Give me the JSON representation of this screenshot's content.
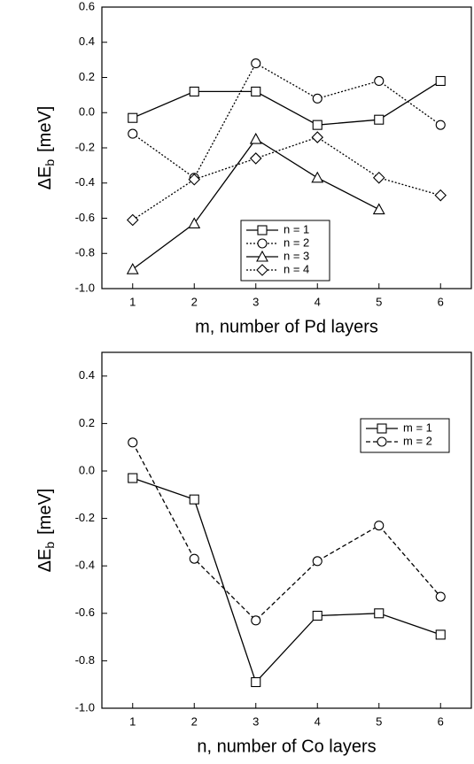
{
  "chart_data": [
    {
      "type": "line",
      "ylabel": {
        "main": "ΔE",
        "sub": "b",
        "unit": "[meV]"
      },
      "xlabel": "m, number of Pd layers",
      "x": [
        1,
        2,
        3,
        4,
        5,
        6
      ],
      "xlim": [
        0.5,
        6.5
      ],
      "xticks": [
        1,
        2,
        3,
        4,
        5,
        6
      ],
      "ylim": [
        -1.0,
        0.6
      ],
      "yticks": [
        {
          "value": -1.0,
          "label": "-1.0"
        },
        -0.8,
        -0.6,
        -0.4,
        -0.2,
        {
          "value": 0,
          "label": "0.0"
        },
        0.2,
        0.4,
        0.6
      ],
      "legend": "center",
      "series": [
        {
          "name": "n = 1",
          "color": "#000000",
          "marker": "square",
          "line_style": "solid",
          "values": [
            -0.03,
            0.12,
            0.12,
            -0.07,
            -0.04,
            0.18
          ]
        },
        {
          "name": "n = 2",
          "color": "#000000",
          "marker": "circle",
          "line_style": "dotted",
          "values": [
            -0.12,
            -0.37,
            0.28,
            0.08,
            0.18,
            -0.07
          ]
        },
        {
          "name": "n = 3",
          "color": "#000000",
          "marker": "triangle",
          "line_style": "solid",
          "values": [
            -0.89,
            -0.63,
            -0.15,
            -0.37,
            -0.55,
            null
          ]
        },
        {
          "name": "n = 4",
          "color": "#000000",
          "marker": "diamond",
          "line_style": "dotted",
          "values": [
            -0.61,
            -0.38,
            -0.26,
            -0.14,
            -0.37,
            -0.47
          ]
        }
      ]
    },
    {
      "type": "line",
      "ylabel": {
        "main": "ΔE",
        "sub": "b",
        "unit": "[meV]"
      },
      "xlabel": "n, number of Co layers",
      "x": [
        1,
        2,
        3,
        4,
        5,
        6
      ],
      "xlim": [
        0.5,
        6.5
      ],
      "xticks": [
        1,
        2,
        3,
        4,
        5,
        6
      ],
      "ylim": [
        -1.0,
        0.5
      ],
      "yticks": [
        {
          "value": -1.0,
          "label": "-1.0"
        },
        -0.8,
        -0.6,
        -0.4,
        -0.2,
        {
          "value": 0,
          "label": "0.0"
        },
        0.2,
        0.4
      ],
      "legend": "upper right",
      "series": [
        {
          "name": "m = 1",
          "color": "#000000",
          "marker": "square",
          "line_style": "solid",
          "values": [
            -0.03,
            -0.12,
            -0.89,
            -0.61,
            -0.6,
            -0.69
          ]
        },
        {
          "name": "m = 2",
          "color": "#000000",
          "marker": "circle",
          "line_style": "dashed",
          "values": [
            0.12,
            -0.37,
            -0.63,
            -0.38,
            -0.23,
            -0.53
          ]
        }
      ]
    }
  ]
}
